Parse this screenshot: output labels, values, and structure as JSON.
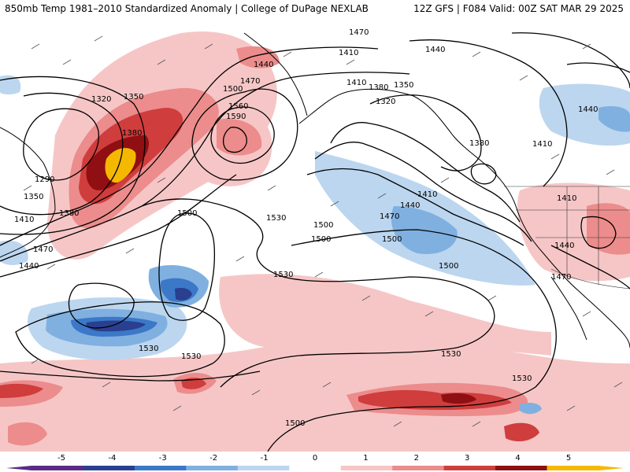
{
  "header": {
    "title_left": "850mb Temp 1981–2010 Standardized Anomaly | College of DuPage NEXLAB",
    "title_right": "12Z GFS | F084 Valid: 00Z SAT MAR 29 2025"
  },
  "contour_labels": [
    "1470",
    "1410",
    "1440",
    "1440",
    "1470",
    "1500",
    "1560",
    "1590",
    "1320",
    "1350",
    "1380",
    "1290",
    "1410",
    "1350",
    "1380",
    "1410",
    "1440",
    "1470",
    "1500",
    "1530",
    "1500",
    "1500",
    "1530",
    "1380",
    "1350",
    "1320",
    "1380",
    "1410",
    "1440",
    "1410",
    "1440",
    "1470",
    "1410",
    "1440",
    "1500",
    "1530",
    "1470",
    "1530",
    "1530",
    "1530",
    "1500",
    "1500"
  ],
  "colorbar": {
    "ticks": [
      "-5",
      "-4",
      "-3",
      "-2",
      "-1",
      "0",
      "1",
      "2",
      "3",
      "4",
      "5"
    ],
    "colors": [
      "#5b2a86",
      "#2a3f8f",
      "#3c78c8",
      "#7fb0e0",
      "#bcd6ef",
      "#ffffff",
      "#f6c6c6",
      "#ec8c8c",
      "#cf3d3d",
      "#8f0f12",
      "#f5b800"
    ]
  }
}
